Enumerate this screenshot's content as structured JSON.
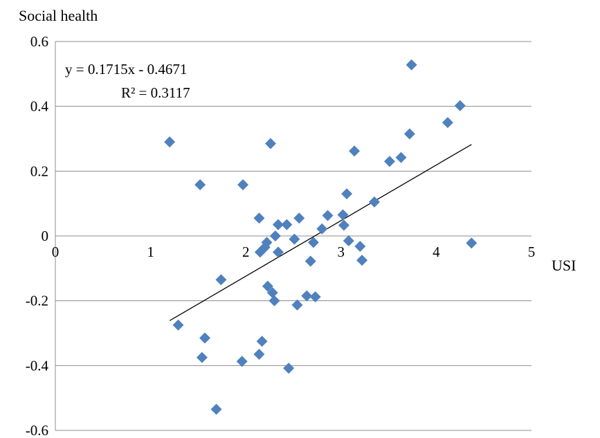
{
  "chart_data": {
    "type": "scatter",
    "title": "",
    "xlabel": "USI",
    "ylabel": "Social health",
    "xlim": [
      0,
      5
    ],
    "ylim": [
      -0.6,
      0.6
    ],
    "x_ticks": [
      "0",
      "1",
      "2",
      "3",
      "4",
      "5"
    ],
    "y_ticks": [
      "0.6",
      "0.4",
      "0.2",
      "0",
      "-0.2",
      "-0.4",
      "-0.6"
    ],
    "grid": "horizontal",
    "marker": "diamond",
    "marker_color": "#4f81bd",
    "trendline": {
      "slope": 0.1715,
      "intercept": -0.4671,
      "x_range": [
        1.2,
        4.37
      ],
      "equation": "y = 0.1715x - 0.4671",
      "r_squared": "R² = 0.3117"
    },
    "points": [
      [
        1.2,
        0.29
      ],
      [
        1.29,
        -0.275
      ],
      [
        1.52,
        0.158
      ],
      [
        1.54,
        -0.375
      ],
      [
        1.57,
        -0.315
      ],
      [
        1.69,
        -0.535
      ],
      [
        1.74,
        -0.135
      ],
      [
        1.96,
        -0.387
      ],
      [
        1.97,
        0.158
      ],
      [
        2.14,
        0.055
      ],
      [
        2.14,
        -0.365
      ],
      [
        2.15,
        -0.05
      ],
      [
        2.17,
        -0.325
      ],
      [
        2.2,
        -0.035
      ],
      [
        2.22,
        -0.02
      ],
      [
        2.23,
        -0.155
      ],
      [
        2.26,
        0.285
      ],
      [
        2.28,
        -0.175
      ],
      [
        2.3,
        -0.2
      ],
      [
        2.31,
        0.0
      ],
      [
        2.34,
        0.035
      ],
      [
        2.34,
        -0.05
      ],
      [
        2.43,
        0.035
      ],
      [
        2.45,
        -0.408
      ],
      [
        2.51,
        -0.01
      ],
      [
        2.54,
        -0.213
      ],
      [
        2.56,
        0.055
      ],
      [
        2.64,
        -0.185
      ],
      [
        2.68,
        -0.078
      ],
      [
        2.71,
        -0.02
      ],
      [
        2.73,
        -0.188
      ],
      [
        2.8,
        0.022
      ],
      [
        2.86,
        0.063
      ],
      [
        3.02,
        0.065
      ],
      [
        3.03,
        0.033
      ],
      [
        3.06,
        0.13
      ],
      [
        3.08,
        -0.015
      ],
      [
        3.14,
        0.262
      ],
      [
        3.2,
        -0.032
      ],
      [
        3.22,
        -0.075
      ],
      [
        3.35,
        0.105
      ],
      [
        3.51,
        0.23
      ],
      [
        3.63,
        0.242
      ],
      [
        3.72,
        0.315
      ],
      [
        3.74,
        0.528
      ],
      [
        4.12,
        0.35
      ],
      [
        4.25,
        0.402
      ],
      [
        4.37,
        -0.022
      ]
    ]
  }
}
